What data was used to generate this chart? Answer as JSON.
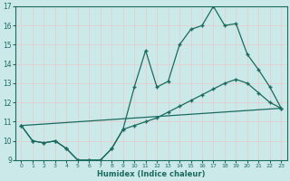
{
  "xlabel": "Humidex (Indice chaleur)",
  "xlim": [
    -0.5,
    23.5
  ],
  "ylim": [
    9,
    17
  ],
  "yticks": [
    9,
    10,
    11,
    12,
    13,
    14,
    15,
    16,
    17
  ],
  "xticks": [
    0,
    1,
    2,
    3,
    4,
    5,
    6,
    7,
    8,
    9,
    10,
    11,
    12,
    13,
    14,
    15,
    16,
    17,
    18,
    19,
    20,
    21,
    22,
    23
  ],
  "bg_color": "#cce9ea",
  "grid_color": "#e8c8c8",
  "line_color": "#1a6b5e",
  "line1_x": [
    0,
    1,
    2,
    3,
    4,
    5,
    6,
    7,
    8,
    9,
    10,
    11,
    12,
    13,
    14,
    15,
    16,
    17,
    18,
    19,
    20,
    21,
    22,
    23
  ],
  "line1_y": [
    10.8,
    10.0,
    9.9,
    10.0,
    9.6,
    9.0,
    9.0,
    9.0,
    9.6,
    10.6,
    12.8,
    14.7,
    12.8,
    13.1,
    15.0,
    15.8,
    16.0,
    17.0,
    16.0,
    16.1,
    14.5,
    13.7,
    12.8,
    11.7
  ],
  "line2_x": [
    0,
    1,
    2,
    3,
    4,
    5,
    6,
    7,
    8,
    9,
    10,
    11,
    12,
    13,
    14,
    15,
    16,
    17,
    18,
    19,
    20,
    21,
    22,
    23
  ],
  "line2_y": [
    10.8,
    10.0,
    9.9,
    10.0,
    9.6,
    9.0,
    9.0,
    9.0,
    9.6,
    10.6,
    10.8,
    11.0,
    11.2,
    11.5,
    11.8,
    12.1,
    12.4,
    12.7,
    13.0,
    13.2,
    13.0,
    12.5,
    12.0,
    11.7
  ],
  "line3_x": [
    0,
    23
  ],
  "line3_y": [
    10.8,
    11.7
  ]
}
